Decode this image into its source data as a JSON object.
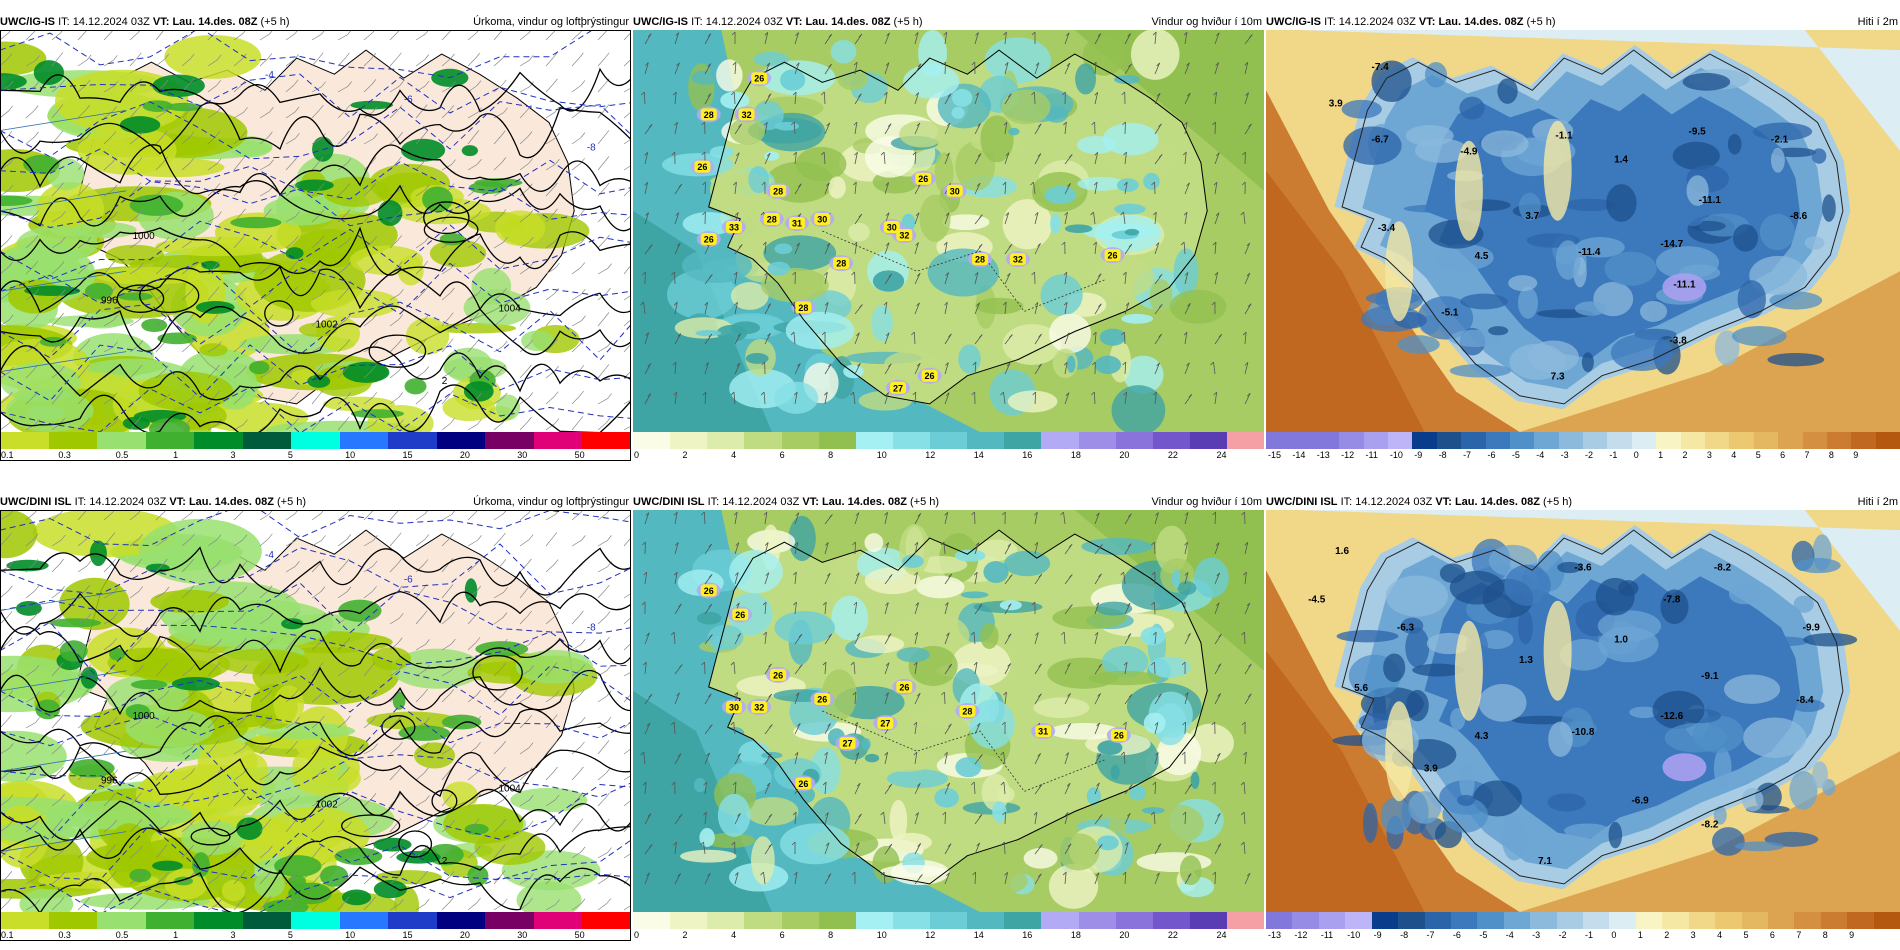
{
  "rows": [
    {
      "model": "UWC/IG-IS",
      "panels": [
        {
          "type": "precip",
          "header": {
            "model": "UWC/IG-IS",
            "it_label": "IT:",
            "it": "14.12.2024 03Z",
            "vt_label": "VT:",
            "vt": "Lau. 14.des. 08Z",
            "lead": "(+5 h)"
          },
          "right_label": "Úrkoma, vindur og loftþrýstingur",
          "labels": [
            {
              "t": "996"
            },
            {
              "t": "1000"
            },
            {
              "t": "1002"
            },
            {
              "t": "1004"
            },
            {
              "t": "-4"
            },
            {
              "t": "-6"
            },
            {
              "t": "-8"
            },
            {
              "t": "2"
            }
          ],
          "cbar_ticks": [
            "0.1",
            "0.3",
            "0.5",
            "1",
            "3",
            "5",
            "10",
            "15",
            "20",
            "30",
            "50"
          ]
        },
        {
          "type": "wind",
          "header": {
            "model": "UWC/IG-IS",
            "it_label": "IT:",
            "it": "14.12.2024 03Z",
            "vt_label": "VT:",
            "vt": "Lau. 14.des. 08Z",
            "lead": "(+5 h)"
          },
          "right_label": "Vindur og hviður í 10m",
          "gusts": [
            "26",
            "28",
            "32",
            "26",
            "28",
            "31",
            "30",
            "28",
            "26",
            "33",
            "30",
            "28",
            "32",
            "26",
            "30",
            "32",
            "26",
            "28",
            "28",
            "27",
            "26"
          ],
          "cbar_ticks": [
            "0",
            "2",
            "4",
            "6",
            "8",
            "10",
            "12",
            "14",
            "16",
            "18",
            "20",
            "22",
            "24"
          ]
        },
        {
          "type": "temp",
          "header": {
            "model": "UWC/IG-IS",
            "it_label": "IT:",
            "it": "14.12.2024 03Z",
            "vt_label": "VT:",
            "vt": "Lau. 14.des. 08Z",
            "lead": "(+5 h)"
          },
          "right_label": "Hiti í 2m",
          "temps": [
            "-7.4",
            "3.9",
            "-6.7",
            "-4.9",
            "-1.1",
            "1.4",
            "-9.5",
            "-2.1",
            "-11.1",
            "-8.6",
            "-3.4",
            "3.7",
            "4.5",
            "-11.4",
            "-14.7",
            "-11.1",
            "-5.1",
            "-3.8",
            "7.3"
          ],
          "cbar_ticks": [
            "-15",
            "-14",
            "-13",
            "-12",
            "-11",
            "-10",
            "-9",
            "-8",
            "-7",
            "-6",
            "-5",
            "-4",
            "-3",
            "-2",
            "-1",
            "0",
            "1",
            "2",
            "3",
            "4",
            "5",
            "6",
            "7",
            "8",
            "9"
          ]
        }
      ]
    },
    {
      "model": "UWC/DINI ISL",
      "panels": [
        {
          "type": "precip",
          "header": {
            "model": "UWC/DINI ISL",
            "it_label": "IT:",
            "it": "14.12.2024 03Z",
            "vt_label": "VT:",
            "vt": "Lau. 14.des. 08Z",
            "lead": "(+5 h)"
          },
          "right_label": "Úrkoma, vindur og loftþrýstingur",
          "labels": [
            {
              "t": "996"
            },
            {
              "t": "1000"
            },
            {
              "t": "1002"
            },
            {
              "t": "1004"
            },
            {
              "t": "-4"
            },
            {
              "t": "-6"
            },
            {
              "t": "-8"
            },
            {
              "t": "2"
            }
          ],
          "cbar_ticks": [
            "0.1",
            "0.3",
            "0.5",
            "1",
            "3",
            "5",
            "10",
            "15",
            "20",
            "30",
            "50"
          ]
        },
        {
          "type": "wind",
          "header": {
            "model": "UWC/DINI ISL",
            "it_label": "IT:",
            "it": "14.12.2024 03Z",
            "vt_label": "VT:",
            "vt": "Lau. 14.des. 08Z",
            "lead": "(+5 h)"
          },
          "right_label": "Vindur og hviður í 10m",
          "gusts": [
            "26",
            "26",
            "26",
            "30",
            "32",
            "26",
            "26",
            "28",
            "27",
            "27",
            "31",
            "26",
            "26"
          ],
          "cbar_ticks": [
            "0",
            "2",
            "4",
            "6",
            "8",
            "10",
            "12",
            "14",
            "16",
            "18",
            "20",
            "22",
            "24"
          ]
        },
        {
          "type": "temp",
          "header": {
            "model": "UWC/DINI ISL",
            "it_label": "IT:",
            "it": "14.12.2024 03Z",
            "vt_label": "VT:",
            "vt": "Lau. 14.des. 08Z",
            "lead": "(+5 h)"
          },
          "right_label": "Hiti í 2m",
          "temps": [
            "1.6",
            "-4.5",
            "-6.3",
            "-3.6",
            "-8.2",
            "-7.8",
            "1.0",
            "-9.9",
            "1.3",
            "5.6",
            "-9.1",
            "-8.4",
            "4.3",
            "-10.8",
            "-12.6",
            "3.9",
            "-6.9",
            "-8.2",
            "7.1"
          ],
          "cbar_ticks": [
            "-13",
            "-12",
            "-11",
            "-10",
            "-9",
            "-8",
            "-7",
            "-6",
            "-5",
            "-4",
            "-3",
            "-2",
            "-1",
            "0",
            "1",
            "2",
            "3",
            "4",
            "5",
            "6",
            "7",
            "8",
            "9"
          ]
        }
      ]
    }
  ],
  "colors": {
    "precip_scale": [
      "#c8de28",
      "#a0c800",
      "#98e070",
      "#40b030",
      "#008c28",
      "#005a3c",
      "#00ffe0",
      "#2878ff",
      "#1e3cc8",
      "#000080",
      "#780064",
      "#e00078",
      "#ff0000"
    ],
    "wind_scale": [
      "#fafce8",
      "#eef4c4",
      "#dcecaa",
      "#c0dc82",
      "#a8cc64",
      "#92c050",
      "#a4f0f2",
      "#86e0e6",
      "#6ccdd6",
      "#54b8c0",
      "#3ea4a4",
      "#b3aaf5",
      "#9e8ee8",
      "#8a74dc",
      "#7456cc",
      "#5a3cb4",
      "#f5a0a5"
    ],
    "temp_cold": [
      "#8278dc",
      "#968ce6",
      "#aaa0f0",
      "#beb4f8",
      "#0a3c8c",
      "#1e508c",
      "#2c64aa",
      "#3c78bc",
      "#5090c8",
      "#6ea6d4",
      "#8cbadc",
      "#a8cce4",
      "#c4dcec",
      "#dceef4"
    ],
    "temp_warm": [
      "#f8f4c4",
      "#f4e8a4",
      "#f0d888",
      "#ecc870",
      "#e4b860",
      "#dca450",
      "#d49040",
      "#cc7c30",
      "#c06820",
      "#b45810"
    ],
    "land_bg": "#fae8da"
  }
}
